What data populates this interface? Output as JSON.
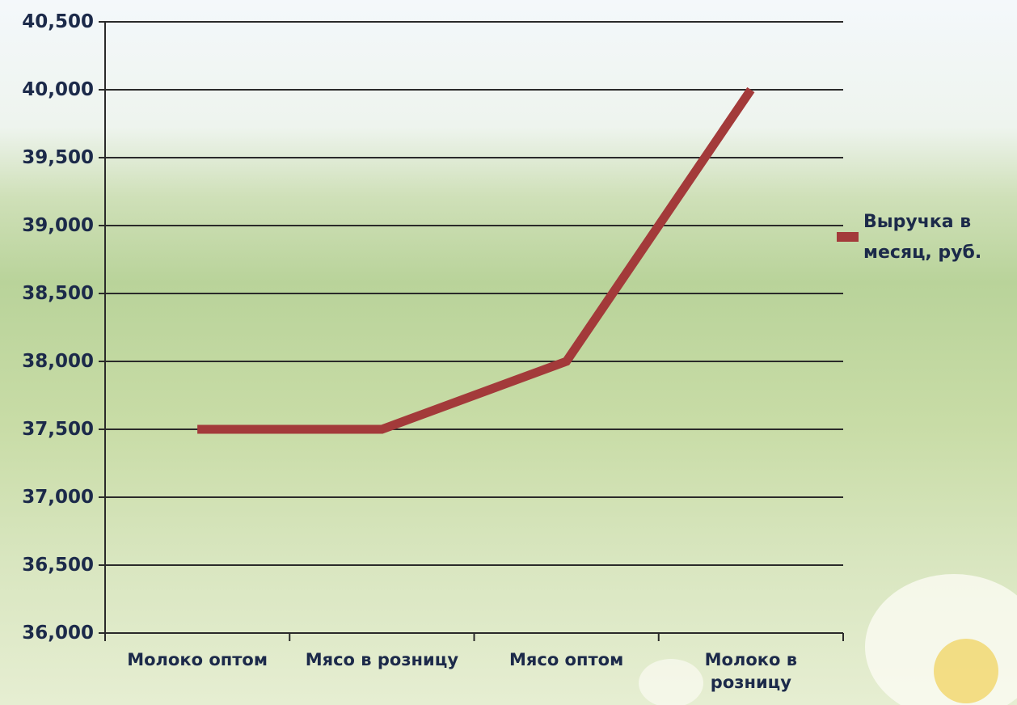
{
  "chart_data": {
    "type": "line",
    "categories": [
      "Молоко оптом",
      "Мясо в розницу",
      "Мясо оптом",
      "Молоко в розницу"
    ],
    "series": [
      {
        "name": "Выручка в месяц, руб.",
        "color": "#a33a3a",
        "values": [
          37500,
          37500,
          38000,
          40000
        ]
      }
    ],
    "ylim": [
      36000,
      40500
    ],
    "yticks": [
      {
        "value": 36000,
        "label": "36,000"
      },
      {
        "value": 36500,
        "label": "36,500"
      },
      {
        "value": 37000,
        "label": "37,000"
      },
      {
        "value": 37500,
        "label": "37,500"
      },
      {
        "value": 38000,
        "label": "38,000"
      },
      {
        "value": 38500,
        "label": "38,500"
      },
      {
        "value": 39000,
        "label": "39,000"
      },
      {
        "value": 39500,
        "label": "39,500"
      },
      {
        "value": 40000,
        "label": "40,000"
      },
      {
        "value": 40500,
        "label": "40,500"
      }
    ],
    "grid": true,
    "legend": "right"
  }
}
